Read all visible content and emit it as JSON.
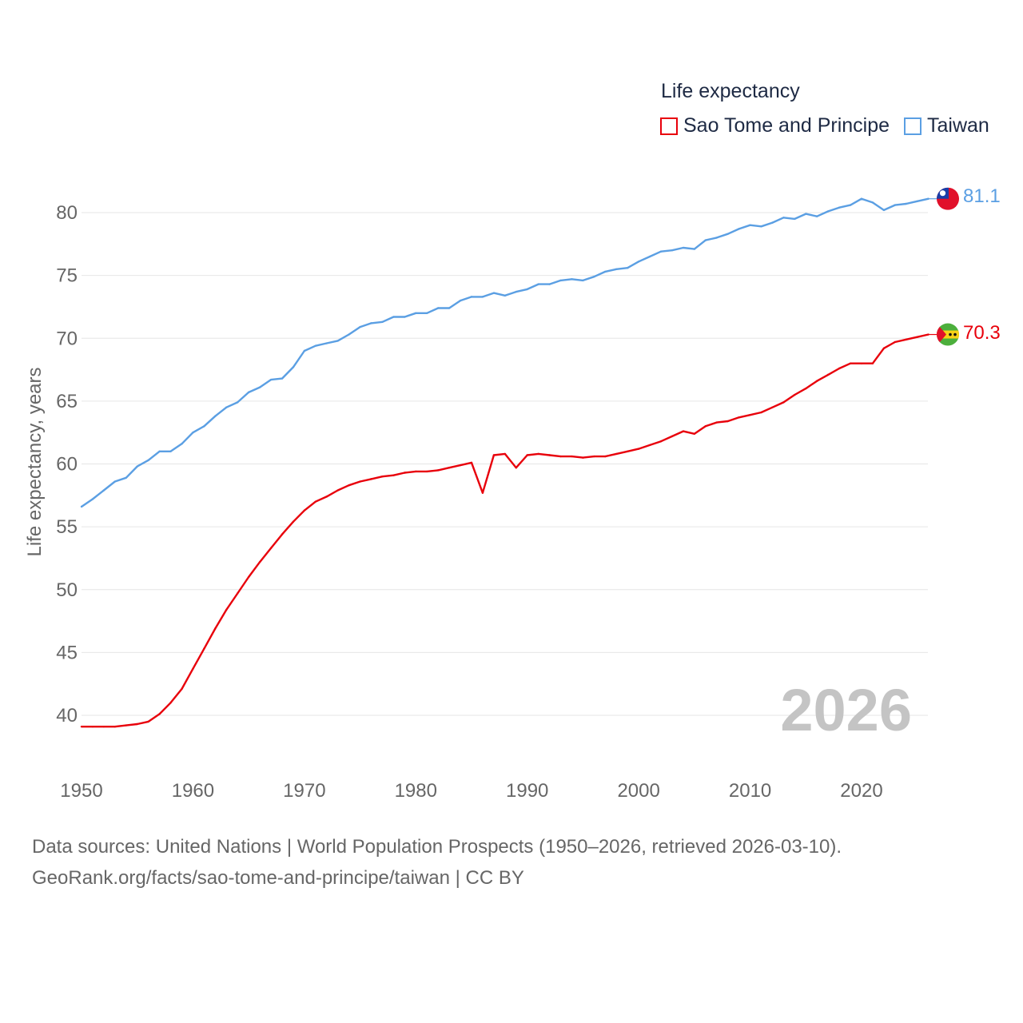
{
  "legend": {
    "title": "Life expectancy",
    "items": [
      {
        "label": "Sao Tome and Principe",
        "color": "#e8000b"
      },
      {
        "label": "Taiwan",
        "color": "#5b9fe3"
      }
    ]
  },
  "year_watermark": "2026",
  "end_labels": {
    "taiwan": "81.1",
    "stp": "70.3"
  },
  "icons": {
    "taiwan": "taiwan-flag-icon",
    "stp": "sao-tome-flag-icon"
  },
  "footer": {
    "line1": "Data sources: United Nations | World Population Prospects (1950–2026, retrieved 2026-03-10).",
    "line2": "GeoRank.org/facts/sao-tome-and-principe/taiwan | CC BY"
  },
  "chart_data": {
    "type": "line",
    "title": "Life expectancy",
    "xlabel": "",
    "ylabel": "Life expectancy, years",
    "xlim": [
      1950,
      2026
    ],
    "ylim": [
      37,
      83
    ],
    "x_ticks": [
      1950,
      1960,
      1970,
      1980,
      1990,
      2000,
      2010,
      2020
    ],
    "y_ticks": [
      40,
      45,
      50,
      55,
      60,
      65,
      70,
      75,
      80
    ],
    "grid": true,
    "legend_position": "top-right",
    "x": [
      1950,
      1951,
      1952,
      1953,
      1954,
      1955,
      1956,
      1957,
      1958,
      1959,
      1960,
      1961,
      1962,
      1963,
      1964,
      1965,
      1966,
      1967,
      1968,
      1969,
      1970,
      1971,
      1972,
      1973,
      1974,
      1975,
      1976,
      1977,
      1978,
      1979,
      1980,
      1981,
      1982,
      1983,
      1984,
      1985,
      1986,
      1987,
      1988,
      1989,
      1990,
      1991,
      1992,
      1993,
      1994,
      1995,
      1996,
      1997,
      1998,
      1999,
      2000,
      2001,
      2002,
      2003,
      2004,
      2005,
      2006,
      2007,
      2008,
      2009,
      2010,
      2011,
      2012,
      2013,
      2014,
      2015,
      2016,
      2017,
      2018,
      2019,
      2020,
      2021,
      2022,
      2023,
      2024,
      2025,
      2026
    ],
    "series": [
      {
        "name": "Sao Tome and Principe",
        "color": "#e8000b",
        "values": [
          39.1,
          39.1,
          39.1,
          39.1,
          39.2,
          39.3,
          39.5,
          40.1,
          41.0,
          42.1,
          43.7,
          45.3,
          46.9,
          48.4,
          49.7,
          51.0,
          52.2,
          53.3,
          54.4,
          55.4,
          56.3,
          57.0,
          57.4,
          57.9,
          58.3,
          58.6,
          58.8,
          59.0,
          59.1,
          59.3,
          59.4,
          59.4,
          59.5,
          59.7,
          59.9,
          60.1,
          57.7,
          60.7,
          60.8,
          59.7,
          60.7,
          60.8,
          60.7,
          60.6,
          60.6,
          60.5,
          60.6,
          60.6,
          60.8,
          61.0,
          61.2,
          61.5,
          61.8,
          62.2,
          62.6,
          62.4,
          63.0,
          63.3,
          63.4,
          63.7,
          63.9,
          64.1,
          64.5,
          64.9,
          65.5,
          66.0,
          66.6,
          67.1,
          67.6,
          68.0,
          68.0,
          68.0,
          69.2,
          69.7,
          69.9,
          70.1,
          70.3
        ]
      },
      {
        "name": "Taiwan",
        "color": "#5b9fe3",
        "values": [
          56.6,
          57.2,
          57.9,
          58.6,
          58.9,
          59.8,
          60.3,
          61.0,
          61.0,
          61.6,
          62.5,
          63.0,
          63.8,
          64.5,
          64.9,
          65.7,
          66.1,
          66.7,
          66.8,
          67.7,
          69.0,
          69.4,
          69.6,
          69.8,
          70.3,
          70.9,
          71.2,
          71.3,
          71.7,
          71.7,
          72.0,
          72.0,
          72.4,
          72.4,
          73.0,
          73.3,
          73.3,
          73.6,
          73.4,
          73.7,
          73.9,
          74.3,
          74.3,
          74.6,
          74.7,
          74.6,
          74.9,
          75.3,
          75.5,
          75.6,
          76.1,
          76.5,
          76.9,
          77.0,
          77.2,
          77.1,
          77.8,
          78.0,
          78.3,
          78.7,
          79.0,
          78.9,
          79.2,
          79.6,
          79.5,
          79.9,
          79.7,
          80.1,
          80.4,
          80.6,
          81.1,
          80.8,
          80.2,
          80.6,
          80.7,
          80.9,
          81.1
        ]
      }
    ]
  }
}
